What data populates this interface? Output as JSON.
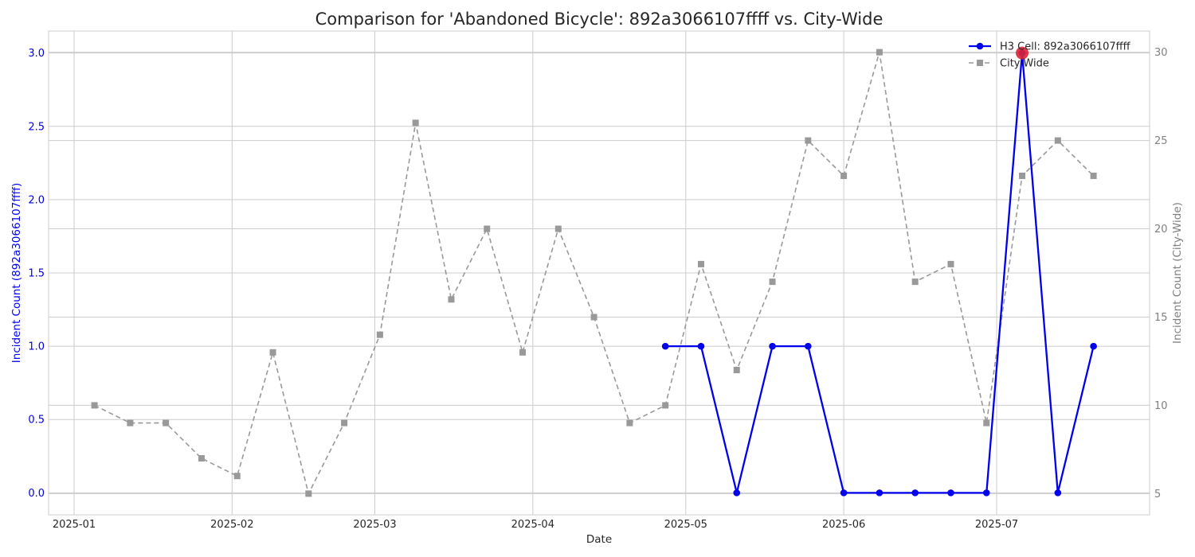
{
  "chart_data": {
    "type": "line",
    "title": "Comparison for 'Abandoned Bicycle': 892a3066107ffff vs. City-Wide",
    "xlabel": "Date",
    "ylabel_left": "Incident Count (892a3066107ffff)",
    "ylabel_right": "Incident Count (City-Wide)",
    "x_ticks": [
      "2025-01",
      "2025-02",
      "2025-03",
      "2025-04",
      "2025-05",
      "2025-06",
      "2025-07"
    ],
    "x_tick_dates": [
      "2025-01-01",
      "2025-02-01",
      "2025-03-01",
      "2025-04-01",
      "2025-05-01",
      "2025-06-01",
      "2025-07-01"
    ],
    "x_range": [
      "2024-12-27",
      "2025-07-31"
    ],
    "ylim_left": [
      -0.15,
      3.15
    ],
    "yticks_left": [
      "0.0",
      "0.5",
      "1.0",
      "1.5",
      "2.0",
      "2.5",
      "3.0"
    ],
    "ylim_right": [
      3.8,
      31.2
    ],
    "yticks_right": [
      "5",
      "10",
      "15",
      "20",
      "25",
      "30"
    ],
    "grid": true,
    "legend_position": "top-right",
    "series": [
      {
        "name": "H3 Cell: 892a3066107ffff",
        "axis": "left",
        "color": "#0000ee",
        "line_style": "solid",
        "marker": "circle",
        "points": [
          {
            "x": "2025-04-27",
            "y": 1
          },
          {
            "x": "2025-05-04",
            "y": 1
          },
          {
            "x": "2025-05-11",
            "y": 0
          },
          {
            "x": "2025-05-18",
            "y": 1
          },
          {
            "x": "2025-05-25",
            "y": 1
          },
          {
            "x": "2025-06-01",
            "y": 0
          },
          {
            "x": "2025-06-08",
            "y": 0
          },
          {
            "x": "2025-06-15",
            "y": 0
          },
          {
            "x": "2025-06-22",
            "y": 0
          },
          {
            "x": "2025-06-29",
            "y": 0
          },
          {
            "x": "2025-07-06",
            "y": 3
          },
          {
            "x": "2025-07-13",
            "y": 0
          },
          {
            "x": "2025-07-20",
            "y": 1
          }
        ]
      },
      {
        "name": "City-Wide",
        "axis": "right",
        "color": "#999999",
        "line_style": "dashed",
        "marker": "square",
        "points": [
          {
            "x": "2025-01-05",
            "y": 10
          },
          {
            "x": "2025-01-12",
            "y": 9
          },
          {
            "x": "2025-01-19",
            "y": 9
          },
          {
            "x": "2025-01-26",
            "y": 7
          },
          {
            "x": "2025-02-02",
            "y": 6
          },
          {
            "x": "2025-02-09",
            "y": 13
          },
          {
            "x": "2025-02-16",
            "y": 5
          },
          {
            "x": "2025-02-23",
            "y": 9
          },
          {
            "x": "2025-03-02",
            "y": 14
          },
          {
            "x": "2025-03-09",
            "y": 26
          },
          {
            "x": "2025-03-16",
            "y": 16
          },
          {
            "x": "2025-03-23",
            "y": 20
          },
          {
            "x": "2025-03-30",
            "y": 13
          },
          {
            "x": "2025-04-06",
            "y": 20
          },
          {
            "x": "2025-04-13",
            "y": 15
          },
          {
            "x": "2025-04-20",
            "y": 9
          },
          {
            "x": "2025-04-27",
            "y": 10
          },
          {
            "x": "2025-05-04",
            "y": 18
          },
          {
            "x": "2025-05-11",
            "y": 12
          },
          {
            "x": "2025-05-18",
            "y": 17
          },
          {
            "x": "2025-05-25",
            "y": 25
          },
          {
            "x": "2025-06-01",
            "y": 23
          },
          {
            "x": "2025-06-08",
            "y": 30
          },
          {
            "x": "2025-06-15",
            "y": 17
          },
          {
            "x": "2025-06-22",
            "y": 18
          },
          {
            "x": "2025-06-29",
            "y": 9
          },
          {
            "x": "2025-07-06",
            "y": 23
          },
          {
            "x": "2025-07-13",
            "y": 25
          },
          {
            "x": "2025-07-20",
            "y": 23
          }
        ]
      }
    ],
    "highlight": {
      "x": "2025-07-06",
      "y": 3,
      "color": "#dd2233"
    }
  }
}
